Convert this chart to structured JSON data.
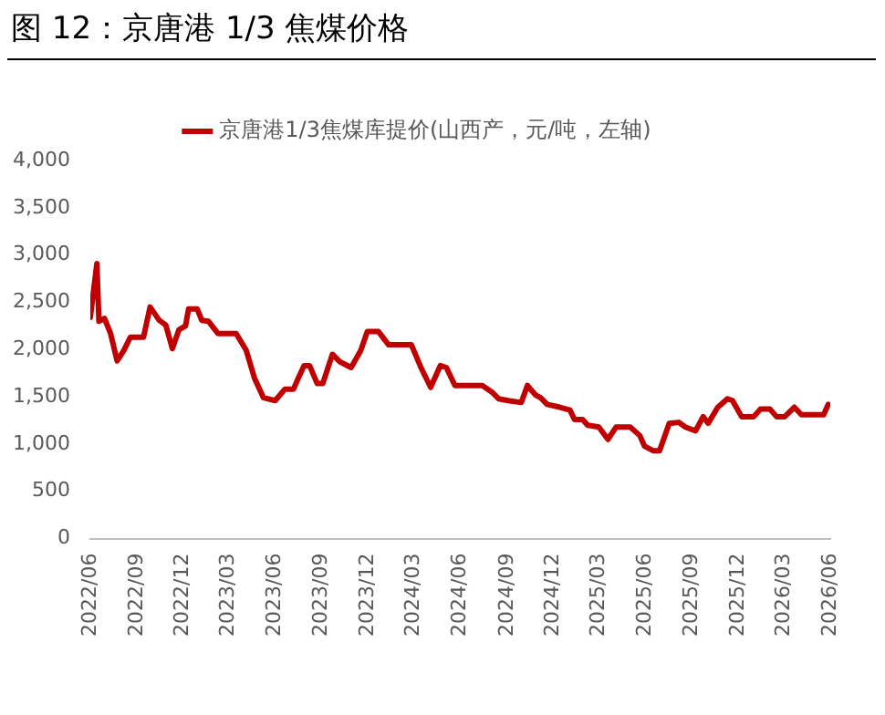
{
  "chart_data": {
    "type": "line",
    "title": "图 12：京唐港 1/3 焦煤价格",
    "x": [
      "2022-06-01",
      "2022-06-14",
      "2022-06-18",
      "2022-06-29",
      "2022-07-11",
      "2022-07-24",
      "2022-08-06",
      "2022-08-19",
      "2022-09-14",
      "2022-09-27",
      "2022-10-15",
      "2022-10-28",
      "2022-11-10",
      "2022-11-23",
      "2022-12-06",
      "2022-12-12",
      "2022-12-29",
      "2023-01-07",
      "2023-01-20",
      "2023-02-08",
      "2023-03-16",
      "2023-04-05",
      "2023-04-21",
      "2023-05-09",
      "2023-06-01",
      "2023-06-20",
      "2023-07-07",
      "2023-07-16",
      "2023-07-28",
      "2023-08-08",
      "2023-08-23",
      "2023-09-03",
      "2023-09-22",
      "2023-10-07",
      "2023-10-29",
      "2023-11-17",
      "2023-11-30",
      "2023-12-22",
      "2024-01-11",
      "2024-02-25",
      "2024-03-14",
      "2024-04-03",
      "2024-04-22",
      "2024-05-04",
      "2024-05-21",
      "2024-07-14",
      "2024-08-02",
      "2024-08-15",
      "2024-09-03",
      "2024-09-29",
      "2024-10-11",
      "2024-10-27",
      "2024-11-06",
      "2024-11-19",
      "2024-12-14",
      "2025-01-03",
      "2025-01-12",
      "2025-01-28",
      "2025-02-07",
      "2025-03-01",
      "2025-03-19",
      "2025-04-04",
      "2025-05-02",
      "2025-05-21",
      "2025-05-30",
      "2025-06-16",
      "2025-06-29",
      "2025-07-18",
      "2025-08-06",
      "2025-08-19",
      "2025-09-08",
      "2025-09-23",
      "2025-10-03",
      "2025-10-22",
      "2025-11-10",
      "2025-11-20",
      "2025-12-08",
      "2026-01-01",
      "2026-01-14",
      "2026-02-02",
      "2026-02-15",
      "2026-03-03",
      "2026-03-22",
      "2026-04-05",
      "2026-05-19",
      "2026-05-28"
    ],
    "series": [
      {
        "name": "京唐港1/3焦煤库提价(山西产，元/吨，左轴)",
        "color": "#c00000",
        "values": [
          2340,
          2910,
          2300,
          2330,
          2170,
          1880,
          1990,
          2130,
          2130,
          2450,
          2310,
          2260,
          2010,
          2210,
          2250,
          2430,
          2430,
          2310,
          2300,
          2170,
          2170,
          1990,
          1700,
          1490,
          1460,
          1580,
          1580,
          1690,
          1830,
          1830,
          1640,
          1640,
          1950,
          1870,
          1810,
          1990,
          2190,
          2190,
          2050,
          2050,
          1820,
          1600,
          1830,
          1810,
          1620,
          1620,
          1550,
          1480,
          1460,
          1440,
          1620,
          1520,
          1490,
          1420,
          1390,
          1360,
          1260,
          1260,
          1200,
          1180,
          1050,
          1180,
          1180,
          1090,
          980,
          930,
          930,
          1220,
          1230,
          1180,
          1140,
          1290,
          1220,
          1390,
          1480,
          1460,
          1290,
          1290,
          1370,
          1370,
          1290,
          1290,
          1390,
          1310,
          1310,
          1420
        ]
      }
    ],
    "xlim": [
      "2022-06-01",
      "2026-06-01"
    ],
    "xticks": [
      {
        "value": "2022-06-01",
        "label": "2022/06"
      },
      {
        "value": "2022-09-01",
        "label": "2022/09"
      },
      {
        "value": "2022-12-01",
        "label": "2022/12"
      },
      {
        "value": "2023-03-01",
        "label": "2023/03"
      },
      {
        "value": "2023-06-01",
        "label": "2023/06"
      },
      {
        "value": "2023-09-01",
        "label": "2023/09"
      },
      {
        "value": "2023-12-01",
        "label": "2023/12"
      },
      {
        "value": "2024-03-01",
        "label": "2024/03"
      },
      {
        "value": "2024-06-01",
        "label": "2024/06"
      },
      {
        "value": "2024-09-01",
        "label": "2024/09"
      },
      {
        "value": "2024-12-01",
        "label": "2024/12"
      },
      {
        "value": "2025-03-01",
        "label": "2025/03"
      },
      {
        "value": "2025-06-01",
        "label": "2025/06"
      },
      {
        "value": "2025-09-01",
        "label": "2025/09"
      },
      {
        "value": "2025-12-01",
        "label": "2025/12"
      },
      {
        "value": "2026-03-01",
        "label": "2026/03"
      },
      {
        "value": "2026-06-01",
        "label": "2026/06"
      }
    ],
    "ylim": [
      0,
      4000
    ],
    "yticks": [
      0,
      {
        "value": 500,
        "label": "500"
      },
      {
        "value": 1000,
        "label": "1,000"
      },
      {
        "value": 1500,
        "label": "1,500"
      },
      {
        "value": 2000,
        "label": "2,000"
      },
      {
        "value": 2500,
        "label": "2,500"
      },
      {
        "value": 3000,
        "label": "3,000"
      },
      {
        "value": 3500,
        "label": "3,500"
      },
      {
        "value": 4000,
        "label": "4,000"
      }
    ],
    "grid": false,
    "legend": "top",
    "marker": "none",
    "line_style": "solid"
  }
}
